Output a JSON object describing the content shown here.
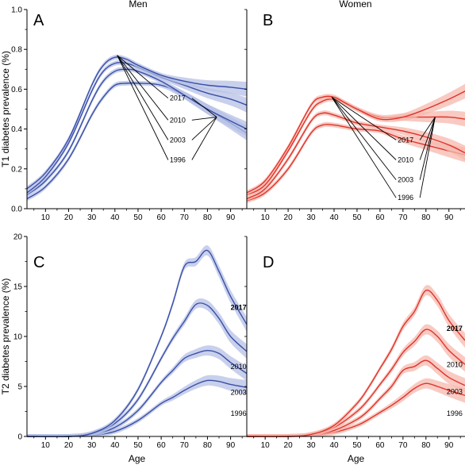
{
  "figure": {
    "col_titles": [
      "Men",
      "Women"
    ]
  },
  "chart_data": [
    {
      "panel": "A",
      "type": "line",
      "title": "Men",
      "xlabel": "",
      "ylabel": "T1 diabetes prevalence (%)",
      "xlim": [
        2,
        97
      ],
      "ylim": [
        0,
        1.0
      ],
      "xticks": [
        10,
        20,
        30,
        40,
        50,
        60,
        70,
        80,
        90
      ],
      "yticks": [
        0.0,
        0.2,
        0.4,
        0.6,
        0.8,
        1.0
      ],
      "color": "#3a4fa6",
      "band_color": "#b5c0e6",
      "series": [
        {
          "name": "1996",
          "x": [
            2,
            10,
            20,
            30,
            35,
            40,
            45,
            50,
            60,
            70,
            80,
            90,
            97
          ],
          "y": [
            0.05,
            0.11,
            0.25,
            0.47,
            0.56,
            0.62,
            0.63,
            0.63,
            0.62,
            0.57,
            0.5,
            0.43,
            0.38
          ]
        },
        {
          "name": "2003",
          "x": [
            2,
            10,
            20,
            30,
            35,
            40,
            45,
            50,
            60,
            70,
            80,
            90,
            97
          ],
          "y": [
            0.07,
            0.14,
            0.29,
            0.54,
            0.64,
            0.69,
            0.7,
            0.69,
            0.64,
            0.57,
            0.5,
            0.44,
            0.4
          ]
        },
        {
          "name": "2010",
          "x": [
            2,
            10,
            20,
            30,
            35,
            40,
            45,
            50,
            60,
            70,
            80,
            90,
            97
          ],
          "y": [
            0.08,
            0.16,
            0.33,
            0.59,
            0.69,
            0.73,
            0.73,
            0.71,
            0.66,
            0.62,
            0.58,
            0.55,
            0.52
          ]
        },
        {
          "name": "2017",
          "x": [
            2,
            10,
            20,
            30,
            35,
            40,
            45,
            50,
            60,
            70,
            80,
            90,
            97
          ],
          "y": [
            0.1,
            0.18,
            0.35,
            0.62,
            0.72,
            0.76,
            0.75,
            0.72,
            0.67,
            0.64,
            0.62,
            0.61,
            0.6
          ]
        }
      ],
      "annotations": {
        "peak": [
          41,
          0.77
        ],
        "end": [
          84,
          0.46
        ],
        "labels": [
          {
            "text": "2017",
            "x": 63,
            "y": 0.555
          },
          {
            "text": "2010",
            "x": 63,
            "y": 0.445
          },
          {
            "text": "2003",
            "x": 63,
            "y": 0.345
          },
          {
            "text": "1996",
            "x": 63,
            "y": 0.245
          }
        ]
      }
    },
    {
      "panel": "B",
      "type": "line",
      "title": "Women",
      "xlabel": "",
      "ylabel": "",
      "xlim": [
        2,
        97
      ],
      "ylim": [
        0,
        1.0
      ],
      "xticks": [
        10,
        20,
        30,
        40,
        50,
        60,
        70,
        80,
        90
      ],
      "yticks": [
        0.0,
        0.2,
        0.4,
        0.6,
        0.8,
        1.0
      ],
      "color": "#e0332b",
      "band_color": "#f5b8ad",
      "series": [
        {
          "name": "1996",
          "x": [
            2,
            10,
            20,
            30,
            35,
            40,
            45,
            50,
            60,
            70,
            80,
            90,
            97
          ],
          "y": [
            0.04,
            0.08,
            0.2,
            0.38,
            0.42,
            0.42,
            0.41,
            0.4,
            0.39,
            0.35,
            0.32,
            0.29,
            0.27
          ]
        },
        {
          "name": "2003",
          "x": [
            2,
            10,
            20,
            30,
            35,
            40,
            45,
            50,
            60,
            70,
            80,
            90,
            97
          ],
          "y": [
            0.05,
            0.1,
            0.25,
            0.44,
            0.48,
            0.47,
            0.45,
            0.43,
            0.41,
            0.39,
            0.36,
            0.32,
            0.28
          ]
        },
        {
          "name": "2010",
          "x": [
            2,
            10,
            20,
            30,
            35,
            40,
            45,
            50,
            60,
            70,
            80,
            90,
            97
          ],
          "y": [
            0.07,
            0.12,
            0.29,
            0.49,
            0.54,
            0.55,
            0.53,
            0.5,
            0.46,
            0.46,
            0.46,
            0.46,
            0.45
          ]
        },
        {
          "name": "2017",
          "x": [
            2,
            10,
            20,
            30,
            35,
            40,
            45,
            50,
            60,
            70,
            80,
            90,
            97
          ],
          "y": [
            0.08,
            0.14,
            0.31,
            0.52,
            0.56,
            0.56,
            0.53,
            0.5,
            0.45,
            0.46,
            0.5,
            0.55,
            0.59
          ]
        }
      ],
      "annotations": {
        "peak": [
          39,
          0.56
        ],
        "end": [
          84,
          0.46
        ],
        "labels": [
          {
            "text": "2017",
            "x": 67,
            "y": 0.345
          },
          {
            "text": "2010",
            "x": 67,
            "y": 0.245
          },
          {
            "text": "2003",
            "x": 67,
            "y": 0.145
          },
          {
            "text": "1996",
            "x": 67,
            "y": 0.055
          }
        ]
      }
    },
    {
      "panel": "C",
      "type": "line",
      "title": "",
      "xlabel": "Age",
      "ylabel": "T2 diabetes prevalence (%)",
      "xlim": [
        2,
        97
      ],
      "ylim": [
        0,
        20
      ],
      "xticks": [
        10,
        20,
        30,
        40,
        50,
        60,
        70,
        80,
        90
      ],
      "yticks": [
        0,
        5,
        10,
        15,
        20
      ],
      "color": "#3a4fa6",
      "band_color": "#b5c0e6",
      "series": [
        {
          "name": "1996",
          "x": [
            2,
            20,
            30,
            40,
            50,
            60,
            65,
            70,
            75,
            80,
            85,
            90,
            97
          ],
          "y": [
            0,
            0,
            0.1,
            0.5,
            1.6,
            3.3,
            3.9,
            4.6,
            5.2,
            5.6,
            5.5,
            5.2,
            4.9
          ]
        },
        {
          "name": "2003",
          "x": [
            2,
            20,
            30,
            40,
            50,
            60,
            65,
            70,
            75,
            80,
            85,
            90,
            97
          ],
          "y": [
            0,
            0,
            0.2,
            0.9,
            2.6,
            5.4,
            6.6,
            7.8,
            8.3,
            8.6,
            8.3,
            7.4,
            6.3
          ]
        },
        {
          "name": "2010",
          "x": [
            2,
            20,
            30,
            40,
            50,
            60,
            65,
            70,
            75,
            80,
            85,
            90,
            97
          ],
          "y": [
            0,
            0,
            0.3,
            1.3,
            3.7,
            7.8,
            9.8,
            11.5,
            13.2,
            13.1,
            11.8,
            10.0,
            8.5
          ]
        },
        {
          "name": "2017",
          "x": [
            2,
            20,
            30,
            40,
            50,
            60,
            65,
            70,
            75,
            80,
            85,
            90,
            97
          ],
          "y": [
            0,
            0,
            0.3,
            1.6,
            4.7,
            10.0,
            13.3,
            17.0,
            17.5,
            18.6,
            16.5,
            14.0,
            11.2
          ]
        }
      ],
      "labels": [
        {
          "text": "2017",
          "x": 90,
          "y": 12.9,
          "bold": true
        },
        {
          "text": "2010",
          "x": 90,
          "y": 7.0
        },
        {
          "text": "2003",
          "x": 90,
          "y": 4.4
        },
        {
          "text": "1996",
          "x": 90,
          "y": 2.3
        }
      ]
    },
    {
      "panel": "D",
      "type": "line",
      "title": "",
      "xlabel": "Age",
      "ylabel": "",
      "xlim": [
        2,
        97
      ],
      "ylim": [
        0,
        20
      ],
      "xticks": [
        10,
        20,
        30,
        40,
        50,
        60,
        70,
        80,
        90
      ],
      "yticks": [
        0,
        5,
        10,
        15,
        20
      ],
      "color": "#e0332b",
      "band_color": "#f5b8ad",
      "series": [
        {
          "name": "1996",
          "x": [
            2,
            20,
            30,
            40,
            50,
            55,
            60,
            65,
            70,
            75,
            80,
            85,
            90,
            97
          ],
          "y": [
            0,
            0,
            0.1,
            0.4,
            1.1,
            1.7,
            2.4,
            3.1,
            3.9,
            4.8,
            5.3,
            5.0,
            4.6,
            4.1
          ]
        },
        {
          "name": "2003",
          "x": [
            2,
            20,
            30,
            40,
            50,
            55,
            60,
            65,
            70,
            75,
            80,
            85,
            90,
            97
          ],
          "y": [
            0,
            0,
            0.1,
            0.6,
            1.7,
            2.6,
            3.8,
            5.0,
            6.6,
            7.0,
            7.6,
            6.8,
            5.9,
            5.1
          ]
        },
        {
          "name": "2010",
          "x": [
            2,
            20,
            30,
            40,
            50,
            55,
            60,
            65,
            70,
            75,
            80,
            85,
            90,
            97
          ],
          "y": [
            0,
            0,
            0.2,
            0.9,
            2.5,
            3.7,
            5.2,
            6.7,
            8.4,
            9.5,
            10.7,
            10.0,
            8.6,
            7.2
          ]
        },
        {
          "name": "2017",
          "x": [
            2,
            20,
            30,
            40,
            50,
            55,
            60,
            65,
            70,
            75,
            80,
            85,
            90,
            97
          ],
          "y": [
            0,
            0,
            0.2,
            1.1,
            3.3,
            4.9,
            6.8,
            8.7,
            11.0,
            12.5,
            14.6,
            13.6,
            11.6,
            9.6
          ]
        }
      ],
      "labels": [
        {
          "text": "2017",
          "x": 89,
          "y": 10.8,
          "bold": true
        },
        {
          "text": "2010",
          "x": 89,
          "y": 7.2
        },
        {
          "text": "2003",
          "x": 89,
          "y": 4.5
        },
        {
          "text": "1996",
          "x": 89,
          "y": 2.3
        }
      ]
    }
  ]
}
